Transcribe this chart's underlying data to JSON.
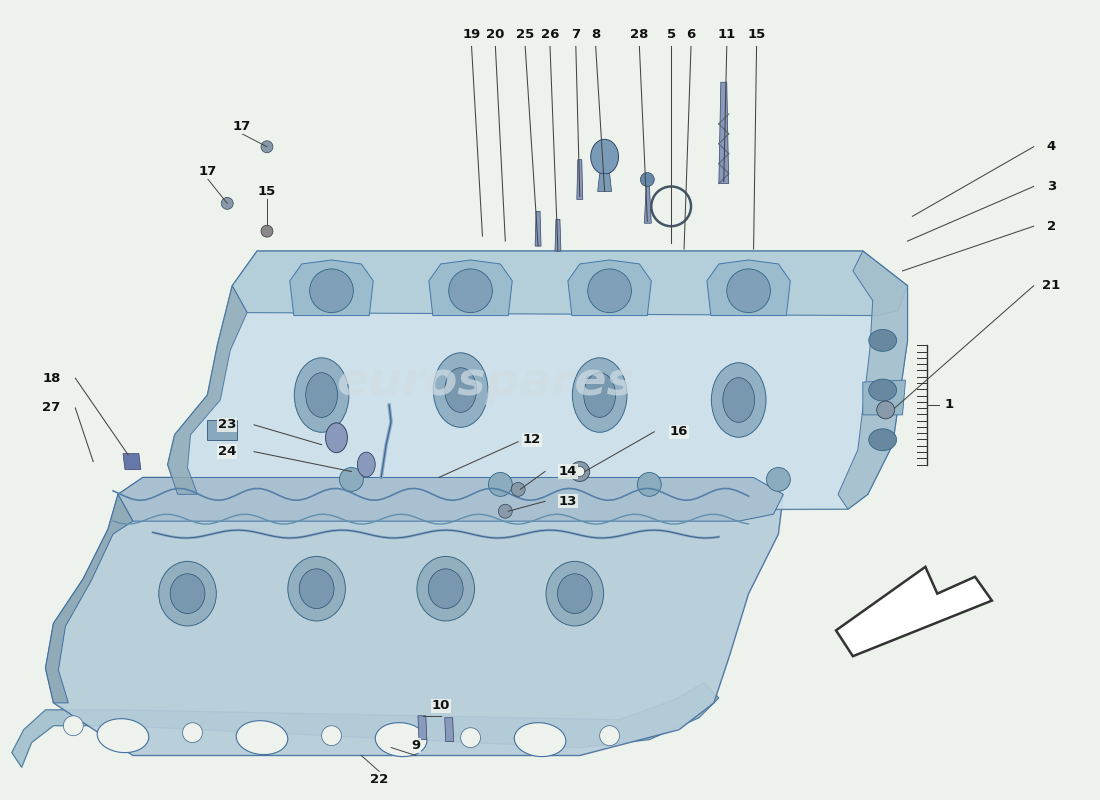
{
  "bg_color": "#edf2ed",
  "head_main_color": "#b8cfd8",
  "head_light_color": "#cce0ea",
  "head_dark_color": "#90aab8",
  "head_darkest": "#7090a4",
  "head_mid": "#a4bfcc",
  "gasket_color": "#b0c8d4",
  "gasket_edge": "#6688a0",
  "watermark_color": "#d8e4e8",
  "line_color": "#444444",
  "text_color": "#111111",
  "label_bg": "#edf2ed"
}
